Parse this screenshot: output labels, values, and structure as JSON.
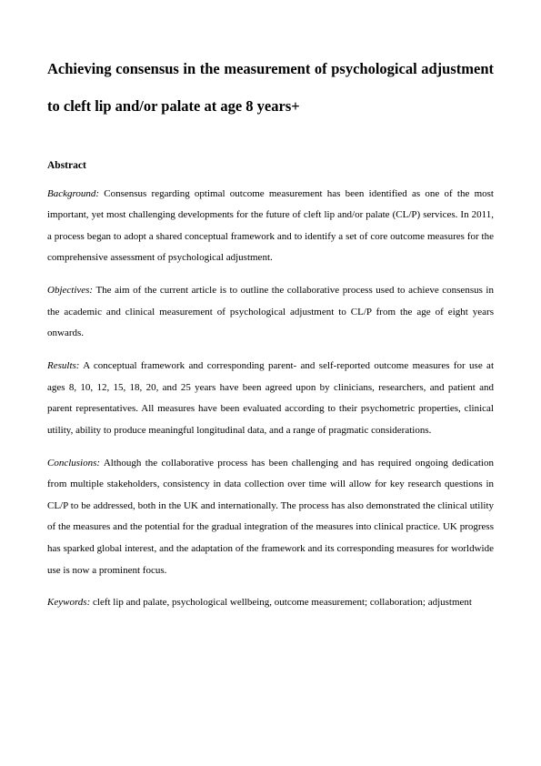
{
  "title": "Achieving consensus in the measurement of psychological adjustment to cleft lip and/or palate at age 8 years+",
  "abstract_heading": "Abstract",
  "background": {
    "label": "Background:",
    "text": " Consensus regarding optimal outcome measurement has been identified as one of the most important, yet most challenging developments for the future of cleft lip and/or palate (CL/P) services.  In 2011, a process began to adopt a shared conceptual framework and to identify a set of core outcome measures for the comprehensive assessment of psychological adjustment."
  },
  "objectives": {
    "label": "Objectives:",
    "text": " The aim of the current article is to outline the collaborative process used to achieve consensus in the academic and clinical measurement of psychological adjustment to CL/P from the age of eight years onwards."
  },
  "results": {
    "label": "Results:",
    "text": " A conceptual framework and corresponding parent- and self-reported outcome measures for use at ages 8, 10, 12, 15, 18, 20, and 25 years have been agreed upon by clinicians, researchers, and patient and parent representatives.  All measures have been evaluated according to their psychometric properties, clinical utility, ability to produce meaningful longitudinal data, and a range of pragmatic considerations."
  },
  "conclusions": {
    "label": "Conclusions:",
    "text": " Although the collaborative process has been challenging and has required ongoing dedication from multiple stakeholders, consistency in data collection over time will allow for key research questions in CL/P to be addressed, both in the UK and internationally.  The process has also demonstrated the clinical utility of the measures and the potential for the gradual integration of the measures into clinical practice.  UK progress has sparked global interest, and the adaptation of the framework and its corresponding measures for worldwide use is now a prominent focus."
  },
  "keywords": {
    "label": "Keywords:",
    "text": " cleft lip and palate, psychological wellbeing, outcome measurement; collaboration; adjustment"
  }
}
